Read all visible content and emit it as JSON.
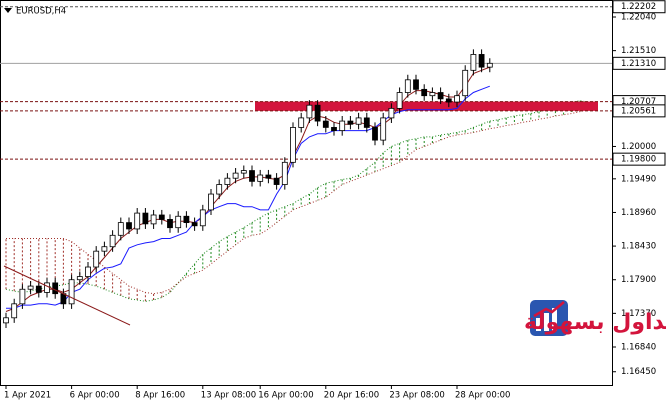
{
  "chart_data": {
    "type": "candlestick",
    "title": "EURUSD,H4",
    "categories": [
      "1 Apr 2021",
      null,
      null,
      null,
      null,
      null,
      null,
      null,
      "6 Apr 00:00",
      null,
      null,
      null,
      null,
      null,
      null,
      null,
      "8 Apr 16:00",
      null,
      null,
      null,
      null,
      null,
      null,
      null,
      "13 Apr 08:00",
      null,
      null,
      null,
      null,
      null,
      null,
      "16 Apr 00:00",
      null,
      null,
      null,
      null,
      null,
      null,
      null,
      "20 Apr 16:00",
      null,
      null,
      null,
      null,
      null,
      null,
      null,
      "23 Apr 08:00",
      null,
      null,
      null,
      null,
      null,
      null,
      null,
      "28 Apr 00:00",
      null,
      null,
      null,
      null,
      null,
      null,
      null,
      null,
      null,
      null,
      null,
      null,
      null,
      null,
      null,
      null
    ],
    "open": [
      1.1722,
      1.173,
      1.1752,
      1.1775,
      1.178,
      1.177,
      1.1785,
      1.1768,
      1.1752,
      1.179,
      1.1795,
      1.181,
      1.1835,
      1.1842,
      1.186,
      1.188,
      1.187,
      1.1895,
      1.1878,
      1.1892,
      1.1885,
      1.1872,
      1.189,
      1.188,
      1.1875,
      1.19,
      1.1925,
      1.194,
      1.195,
      1.1958,
      1.1962,
      1.1945,
      1.1955,
      1.195,
      1.194,
      1.1975,
      1.203,
      1.2045,
      1.2065,
      1.204,
      1.203,
      1.2025,
      1.204,
      1.2035,
      1.2045,
      1.203,
      1.201,
      1.2045,
      1.206,
      1.2085,
      1.2105,
      1.209,
      1.208,
      1.2085,
      1.2075,
      1.207,
      1.208,
      1.212,
      1.2145,
      1.2125,
      null,
      null,
      null,
      null,
      null,
      null,
      null,
      null,
      null,
      null,
      null,
      null
    ],
    "high": [
      1.1738,
      1.176,
      1.1783,
      1.1788,
      1.1788,
      1.1793,
      1.1793,
      1.1776,
      1.1798,
      1.1803,
      1.1818,
      1.1843,
      1.185,
      1.1868,
      1.1888,
      1.1888,
      1.1903,
      1.1903,
      1.19,
      1.19,
      1.1893,
      1.1898,
      1.1898,
      1.1888,
      1.1908,
      1.1933,
      1.1948,
      1.1958,
      1.1966,
      1.197,
      1.197,
      1.1963,
      1.1963,
      1.1958,
      1.1983,
      1.2038,
      1.2053,
      1.2073,
      1.2073,
      1.2048,
      1.2038,
      1.2048,
      1.2048,
      1.2053,
      1.2053,
      1.2038,
      1.2053,
      1.2068,
      1.2093,
      1.2113,
      1.2113,
      1.2098,
      1.2093,
      1.2093,
      1.2083,
      1.2088,
      1.2128,
      1.2153,
      1.2153,
      1.2139,
      null,
      null,
      null,
      null,
      null,
      null,
      null,
      null,
      null,
      null,
      null,
      null
    ],
    "low": [
      1.1714,
      1.1722,
      1.1744,
      1.1767,
      1.1762,
      1.1762,
      1.176,
      1.1744,
      1.1744,
      1.1782,
      1.1787,
      1.1802,
      1.1827,
      1.1834,
      1.1852,
      1.1862,
      1.1862,
      1.187,
      1.187,
      1.1877,
      1.1864,
      1.1864,
      1.1872,
      1.1867,
      1.1867,
      1.1892,
      1.1917,
      1.1932,
      1.1942,
      1.195,
      1.1937,
      1.1937,
      1.1942,
      1.1932,
      1.1932,
      1.1967,
      1.2022,
      1.2037,
      1.2032,
      1.2022,
      1.2017,
      1.2017,
      1.2027,
      1.2027,
      1.2022,
      1.2002,
      1.2002,
      1.2037,
      1.2052,
      1.2077,
      1.2082,
      1.2072,
      1.2072,
      1.2067,
      1.2062,
      1.2062,
      1.2072,
      1.2112,
      1.2117,
      1.2117,
      null,
      null,
      null,
      null,
      null,
      null,
      null,
      null,
      null,
      null,
      null,
      null
    ],
    "close": [
      1.173,
      1.1752,
      1.1775,
      1.178,
      1.177,
      1.1785,
      1.1768,
      1.1752,
      1.179,
      1.1795,
      1.181,
      1.1835,
      1.1842,
      1.186,
      1.188,
      1.187,
      1.1895,
      1.1878,
      1.1892,
      1.1885,
      1.1872,
      1.189,
      1.188,
      1.1875,
      1.19,
      1.1925,
      1.194,
      1.195,
      1.1958,
      1.1962,
      1.1945,
      1.1955,
      1.195,
      1.194,
      1.1975,
      1.203,
      1.2045,
      1.2065,
      1.204,
      1.203,
      1.2025,
      1.204,
      1.2035,
      1.2045,
      1.203,
      1.201,
      1.2045,
      1.206,
      1.2085,
      1.2105,
      1.209,
      1.208,
      1.2085,
      1.2075,
      1.207,
      1.208,
      1.212,
      1.2145,
      1.2125,
      1.2131,
      null,
      null,
      null,
      null,
      null,
      null,
      null,
      null,
      null,
      null,
      null,
      null
    ],
    "indicators": {
      "tenkan": {
        "color": "#8b1a1a",
        "values": [
          1.174,
          1.1745,
          1.1755,
          1.1765,
          1.177,
          1.1775,
          1.1775,
          1.177,
          1.1775,
          1.1785,
          1.1795,
          1.181,
          1.1825,
          1.184,
          1.1855,
          1.1865,
          1.1875,
          1.188,
          1.1885,
          1.1885,
          1.188,
          1.1882,
          1.1882,
          1.188,
          1.1888,
          1.1905,
          1.192,
          1.1935,
          1.1945,
          1.195,
          1.1952,
          1.1952,
          1.195,
          1.1948,
          1.1955,
          1.1985,
          1.201,
          1.204,
          1.2048,
          1.2045,
          1.2038,
          1.2035,
          1.2035,
          1.2038,
          1.2035,
          1.203,
          1.2035,
          1.2045,
          1.2065,
          1.208,
          1.2088,
          1.2088,
          1.2085,
          1.2082,
          1.2078,
          1.2078,
          1.2095,
          1.2115,
          1.212,
          1.2125,
          null,
          null,
          null,
          null,
          null,
          null,
          null,
          null,
          null,
          null,
          null,
          null
        ]
      },
      "kijun": {
        "color": "#1a1aff",
        "values": [
          1.1745,
          1.1745,
          1.175,
          1.175,
          1.1752,
          1.1752,
          1.175,
          1.1755,
          1.177,
          1.1775,
          1.179,
          1.18,
          1.1808,
          1.181,
          1.1815,
          1.184,
          1.1845,
          1.1848,
          1.185,
          1.1855,
          1.1855,
          1.186,
          1.1865,
          1.188,
          1.189,
          1.19,
          1.1905,
          1.191,
          1.191,
          1.1905,
          1.1905,
          1.19,
          1.19,
          1.1925,
          1.1945,
          1.198,
          1.2005,
          1.2015,
          1.202,
          1.202,
          1.2025,
          1.2025,
          1.2025,
          1.2025,
          1.2025,
          1.203,
          1.204,
          1.205,
          1.2055,
          1.2058,
          1.2058,
          1.2058,
          1.2058,
          1.2058,
          1.2058,
          1.206,
          1.2075,
          1.2085,
          1.209,
          1.2095,
          null,
          null,
          null,
          null,
          null,
          null,
          null,
          null,
          null,
          null,
          null,
          null
        ]
      },
      "span_a": {
        "color": "#1f8a1f",
        "values": [
          1.1775,
          1.1772,
          1.177,
          1.1772,
          1.1775,
          1.1778,
          1.178,
          1.1782,
          1.1785,
          1.1785,
          1.1783,
          1.178,
          1.1775,
          1.177,
          1.1765,
          1.176,
          1.1758,
          1.1756,
          1.1758,
          1.1762,
          1.177,
          1.1785,
          1.18,
          1.1815,
          1.183,
          1.184,
          1.185,
          1.1858,
          1.1865,
          1.1872,
          1.188,
          1.1888,
          1.1895,
          1.19,
          1.1905,
          1.191,
          1.1918,
          1.1925,
          1.1935,
          1.1942,
          1.1945,
          1.1948,
          1.195,
          1.1955,
          1.1965,
          1.1975,
          1.199,
          1.2,
          1.2005,
          1.201,
          1.2012,
          1.2015,
          1.2015,
          1.2018,
          1.202,
          1.2022,
          1.2025,
          1.203,
          1.2035,
          1.204,
          1.2042,
          1.2045,
          1.2048,
          1.205,
          1.2052,
          1.2055,
          1.2058,
          1.2062,
          1.2066,
          1.207,
          1.2072,
          1.207
        ]
      },
      "span_b": {
        "color": "#a0302a",
        "values": [
          1.1855,
          1.1855,
          1.1855,
          1.1855,
          1.1855,
          1.1855,
          1.1855,
          1.1855,
          1.185,
          1.184,
          1.183,
          1.182,
          1.181,
          1.18,
          1.179,
          1.178,
          1.1775,
          1.177,
          1.1768,
          1.177,
          1.1775,
          1.1785,
          1.1795,
          1.18,
          1.1805,
          1.1815,
          1.1825,
          1.1835,
          1.1845,
          1.1855,
          1.186,
          1.1862,
          1.187,
          1.188,
          1.189,
          1.19,
          1.1905,
          1.191,
          1.1915,
          1.192,
          1.193,
          1.194,
          1.1945,
          1.195,
          1.1955,
          1.196,
          1.1965,
          1.197,
          1.1975,
          1.1985,
          1.1995,
          1.2,
          1.2005,
          1.201,
          1.2015,
          1.2018,
          1.202,
          1.2022,
          1.2025,
          1.2028,
          1.203,
          1.2033,
          1.2035,
          1.2038,
          1.204,
          1.2043,
          1.2045,
          1.2048,
          1.205,
          1.2052,
          1.2055,
          1.2058
        ]
      }
    },
    "levels": [
      {
        "value": 1.22202,
        "label": "1.22202",
        "style": "dashed",
        "color": "#555555"
      },
      {
        "value": 1.2131,
        "label": "1.21310",
        "style": "solid",
        "color": "#a0a0a0"
      },
      {
        "value": 1.20707,
        "label": "1.20707",
        "style": "dashed",
        "color": "#7a1010"
      },
      {
        "value": 1.20561,
        "label": "1.20561",
        "style": "dashed",
        "color": "#7a1010"
      },
      {
        "value": 1.198,
        "label": "1.19800",
        "style": "dashed",
        "color": "#7a1010"
      }
    ],
    "zone": {
      "low": 1.20561,
      "high": 1.20707,
      "color": "#d3143c"
    },
    "ylim": [
      1.16241,
      1.22308
    ],
    "yticks": [
      {
        "value": 1.2204,
        "label": "1.22040"
      },
      {
        "value": 1.2151,
        "label": "1.21510"
      },
      {
        "value": 1.2,
        "label": "1.20000"
      },
      {
        "value": 1.1949,
        "label": "1.19490"
      },
      {
        "value": 1.1896,
        "label": "1.18960"
      },
      {
        "value": 1.1843,
        "label": "1.18430"
      },
      {
        "value": 1.179,
        "label": "1.17900"
      },
      {
        "value": 1.1737,
        "label": "1.17370"
      },
      {
        "value": 1.1684,
        "label": "1.16840"
      },
      {
        "value": 1.1645,
        "label": "1.16450"
      }
    ],
    "watermark": "التداول بسهولة"
  }
}
